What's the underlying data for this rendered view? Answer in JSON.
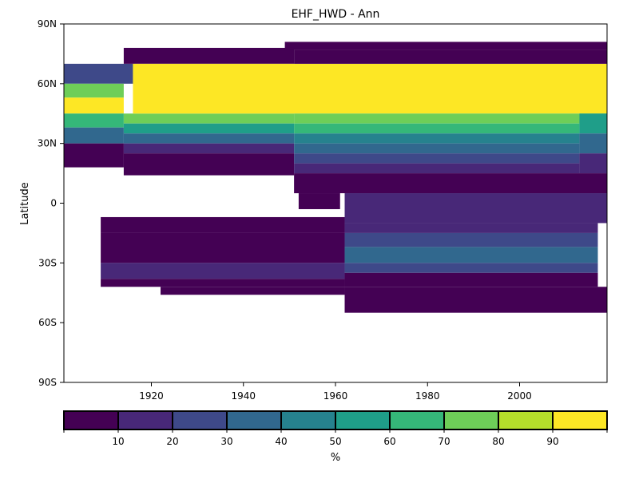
{
  "chart_data": {
    "type": "heatmap",
    "title": "EHF_HWD - Ann",
    "xlabel": "",
    "ylabel": "Latitude",
    "xlim": [
      1901,
      2019
    ],
    "ylim": [
      -90,
      90
    ],
    "x_ticks": [
      1920,
      1940,
      1960,
      1980,
      2000
    ],
    "y_ticks": [
      {
        "value": 90,
        "label": "90N"
      },
      {
        "value": 60,
        "label": "60N"
      },
      {
        "value": 30,
        "label": "30N"
      },
      {
        "value": 0,
        "label": "0"
      },
      {
        "value": -30,
        "label": "30S"
      },
      {
        "value": -60,
        "label": "60S"
      },
      {
        "value": -90,
        "label": "90S"
      }
    ],
    "grid": false,
    "colorbar": {
      "label": "%",
      "orientation": "horizontal",
      "placement": "bottom",
      "boundaries": [
        0,
        10,
        20,
        30,
        40,
        50,
        60,
        70,
        80,
        90,
        100
      ],
      "tick_labels": [
        "10",
        "20",
        "30",
        "40",
        "50",
        "60",
        "70",
        "80",
        "90"
      ],
      "colors": [
        "#440154",
        "#482878",
        "#3e4989",
        "#31688e",
        "#26828e",
        "#1f9e89",
        "#35b779",
        "#6ece58",
        "#b5de2b",
        "#fde725"
      ]
    },
    "regions": [
      {
        "x": [
          1949,
          2019
        ],
        "y": [
          77,
          81
        ],
        "value": 5
      },
      {
        "x": [
          1901,
          1916
        ],
        "y": [
          60,
          70
        ],
        "value": 25
      },
      {
        "x": [
          1901,
          1914
        ],
        "y": [
          53,
          60
        ],
        "value": 75
      },
      {
        "x": [
          1901,
          1914
        ],
        "y": [
          45,
          53
        ],
        "value": 95
      },
      {
        "x": [
          1901,
          1914
        ],
        "y": [
          38,
          45
        ],
        "value": 65
      },
      {
        "x": [
          1901,
          1914
        ],
        "y": [
          30,
          38
        ],
        "value": 35
      },
      {
        "x": [
          1901,
          1914
        ],
        "y": [
          18,
          30
        ],
        "value": 5
      },
      {
        "x": [
          1914,
          1951
        ],
        "y": [
          70,
          78
        ],
        "value": 5
      },
      {
        "x": [
          1914,
          1951
        ],
        "y": [
          40,
          45
        ],
        "value": 75
      },
      {
        "x": [
          1914,
          1951
        ],
        "y": [
          35,
          40
        ],
        "value": 55
      },
      {
        "x": [
          1914,
          1951
        ],
        "y": [
          30,
          35
        ],
        "value": 35
      },
      {
        "x": [
          1914,
          1951
        ],
        "y": [
          25,
          30
        ],
        "value": 15
      },
      {
        "x": [
          1914,
          1951
        ],
        "y": [
          14,
          25
        ],
        "value": 5
      },
      {
        "x": [
          1916,
          2019
        ],
        "y": [
          45,
          70
        ],
        "value": 95
      },
      {
        "x": [
          1951,
          2019
        ],
        "y": [
          70,
          77
        ],
        "value": 5
      },
      {
        "x": [
          1951,
          2019
        ],
        "y": [
          40,
          45
        ],
        "value": 75
      },
      {
        "x": [
          1951,
          2013
        ],
        "y": [
          35,
          40
        ],
        "value": 65
      },
      {
        "x": [
          1951,
          2013
        ],
        "y": [
          30,
          35
        ],
        "value": 45
      },
      {
        "x": [
          1951,
          2013
        ],
        "y": [
          25,
          30
        ],
        "value": 35
      },
      {
        "x": [
          1951,
          2013
        ],
        "y": [
          20,
          25
        ],
        "value": 25
      },
      {
        "x": [
          1951,
          2013
        ],
        "y": [
          15,
          20
        ],
        "value": 15
      },
      {
        "x": [
          2013,
          2019
        ],
        "y": [
          35,
          45
        ],
        "value": 55
      },
      {
        "x": [
          2013,
          2019
        ],
        "y": [
          25,
          35
        ],
        "value": 35
      },
      {
        "x": [
          2013,
          2019
        ],
        "y": [
          15,
          25
        ],
        "value": 15
      },
      {
        "x": [
          1951,
          2019
        ],
        "y": [
          5,
          15
        ],
        "value": 5
      },
      {
        "x": [
          1952,
          1961
        ],
        "y": [
          -3,
          5
        ],
        "value": 5
      },
      {
        "x": [
          1962,
          2019
        ],
        "y": [
          -10,
          5
        ],
        "value": 15
      },
      {
        "x": [
          1909,
          1962
        ],
        "y": [
          -15,
          -7
        ],
        "value": 5
      },
      {
        "x": [
          1962,
          2017
        ],
        "y": [
          -15,
          -10
        ],
        "value": 15
      },
      {
        "x": [
          1962,
          2017
        ],
        "y": [
          -22,
          -15
        ],
        "value": 25
      },
      {
        "x": [
          1909,
          1962
        ],
        "y": [
          -30,
          -15
        ],
        "value": 5
      },
      {
        "x": [
          1962,
          2017
        ],
        "y": [
          -30,
          -22
        ],
        "value": 35
      },
      {
        "x": [
          1909,
          1962
        ],
        "y": [
          -38,
          -30
        ],
        "value": 15
      },
      {
        "x": [
          1962,
          2017
        ],
        "y": [
          -35,
          -30
        ],
        "value": 25
      },
      {
        "x": [
          1962,
          2017
        ],
        "y": [
          -42,
          -35
        ],
        "value": 5
      },
      {
        "x": [
          1909,
          1962
        ],
        "y": [
          -42,
          -38
        ],
        "value": 5
      },
      {
        "x": [
          1922,
          1962
        ],
        "y": [
          -46,
          -42
        ],
        "value": 5
      },
      {
        "x": [
          1962,
          2019
        ],
        "y": [
          -55,
          -42
        ],
        "value": 5
      }
    ]
  }
}
